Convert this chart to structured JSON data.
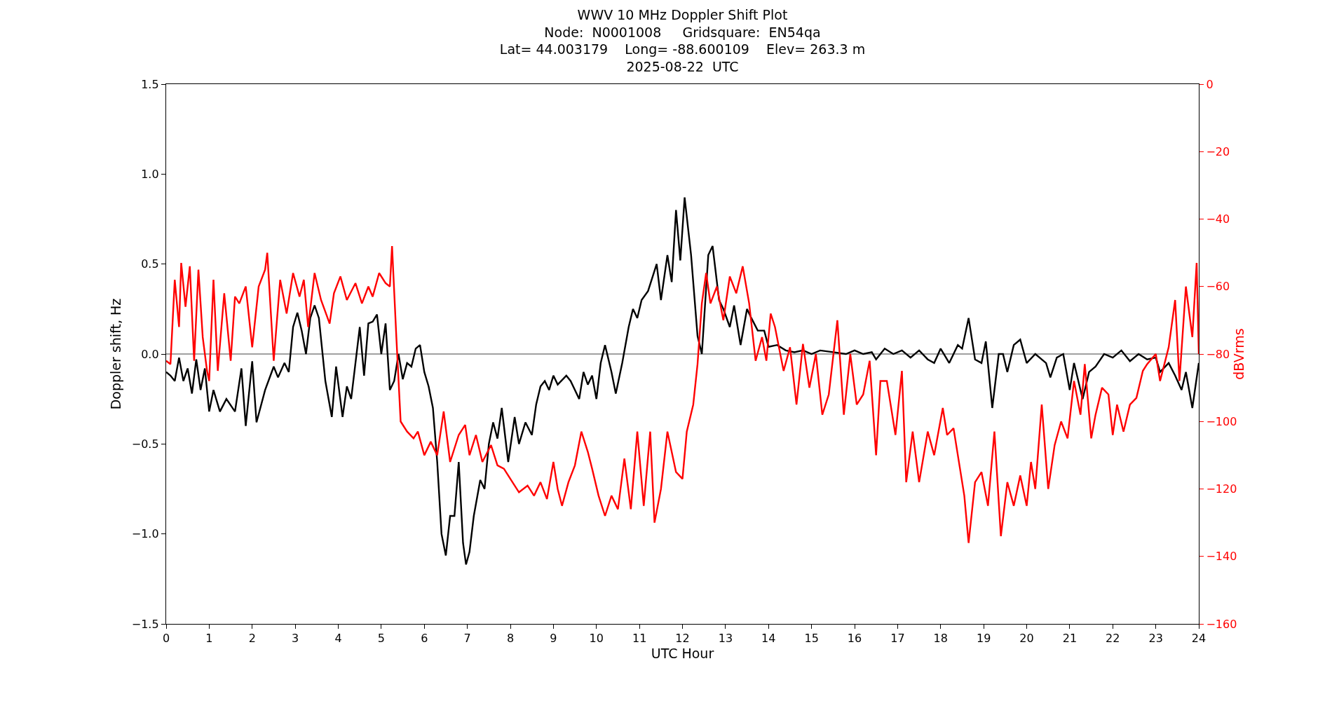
{
  "chart_data": {
    "type": "line",
    "title": "WWV 10 MHz Doppler Shift Plot\nNode:  N0001008     Gridsquare:  EN54qa\nLat= 44.003179    Long= -88.600109    Elev= 263.3 m\n2025-08-22  UTC",
    "xlabel": "UTC Hour",
    "ylabel": "Doppler shift, Hz",
    "y2label": "dBVrms",
    "xlim": [
      0,
      24
    ],
    "xticks": [
      0,
      1,
      2,
      3,
      4,
      5,
      6,
      7,
      8,
      9,
      10,
      11,
      12,
      13,
      14,
      15,
      16,
      17,
      18,
      19,
      20,
      21,
      22,
      23,
      24
    ],
    "ylim": [
      -1.5,
      1.5
    ],
    "yticks": [
      {
        "value": -1.5,
        "label": "−1.5"
      },
      {
        "value": -1.0,
        "label": "−1.0"
      },
      {
        "value": -0.5,
        "label": "−0.5"
      },
      {
        "value": 0,
        "label": "0.0"
      },
      {
        "value": 0.5,
        "label": "0.5"
      },
      {
        "value": 1.0,
        "label": "1.0"
      },
      {
        "value": 1.5,
        "label": "1.5"
      }
    ],
    "y2lim": [
      -160,
      0
    ],
    "y2ticks": [
      {
        "value": -160,
        "label": "−160"
      },
      {
        "value": -140,
        "label": "−140"
      },
      {
        "value": -120,
        "label": "−120"
      },
      {
        "value": -100,
        "label": "−100"
      },
      {
        "value": -80,
        "label": "−80"
      },
      {
        "value": -60,
        "label": "−60"
      },
      {
        "value": -40,
        "label": "−40"
      },
      {
        "value": -20,
        "label": "−20"
      },
      0
    ],
    "grid": false,
    "marker": "none",
    "line_style": "solid",
    "ref_lines": [
      {
        "axis": "y",
        "value": 0,
        "color": "#808080"
      }
    ],
    "series": [
      {
        "color": "#000000",
        "x": [
          0,
          0.1,
          0.2,
          0.3,
          0.4,
          0.5,
          0.6,
          0.7,
          0.8,
          0.9,
          1.0,
          1.1,
          1.25,
          1.4,
          1.6,
          1.75,
          1.85,
          2.0,
          2.1,
          2.3,
          2.5,
          2.6,
          2.75,
          2.85,
          2.95,
          3.05,
          3.15,
          3.25,
          3.35,
          3.45,
          3.55,
          3.7,
          3.85,
          3.95,
          4.1,
          4.2,
          4.3,
          4.5,
          4.6,
          4.7,
          4.8,
          4.9,
          5.0,
          5.1,
          5.2,
          5.3,
          5.4,
          5.5,
          5.6,
          5.7,
          5.8,
          5.9,
          6.0,
          6.1,
          6.2,
          6.3,
          6.4,
          6.5,
          6.6,
          6.7,
          6.8,
          6.9,
          6.97,
          7.05,
          7.15,
          7.3,
          7.4,
          7.5,
          7.6,
          7.7,
          7.8,
          7.95,
          8.1,
          8.2,
          8.35,
          8.5,
          8.6,
          8.7,
          8.8,
          8.9,
          9.0,
          9.1,
          9.3,
          9.4,
          9.6,
          9.7,
          9.8,
          9.9,
          10.0,
          10.1,
          10.2,
          10.35,
          10.45,
          10.6,
          10.75,
          10.85,
          10.95,
          11.05,
          11.2,
          11.4,
          11.5,
          11.65,
          11.75,
          11.85,
          11.95,
          12.05,
          12.2,
          12.35,
          12.45,
          12.6,
          12.7,
          12.85,
          12.95,
          13.1,
          13.2,
          13.35,
          13.5,
          13.6,
          13.75,
          13.9,
          14.0,
          14.2,
          14.4,
          14.6,
          14.8,
          15.0,
          15.2,
          15.5,
          15.8,
          16.0,
          16.2,
          16.4,
          16.5,
          16.7,
          16.9,
          17.1,
          17.3,
          17.5,
          17.7,
          17.85,
          18.0,
          18.2,
          18.4,
          18.5,
          18.65,
          18.8,
          18.95,
          19.05,
          19.2,
          19.35,
          19.45,
          19.55,
          19.7,
          19.85,
          20.0,
          20.2,
          20.45,
          20.55,
          20.7,
          20.85,
          21.0,
          21.1,
          21.2,
          21.3,
          21.45,
          21.6,
          21.8,
          22.0,
          22.2,
          22.4,
          22.6,
          22.8,
          23.0,
          23.1,
          23.3,
          23.45,
          23.6,
          23.7,
          23.85,
          24.0
        ],
        "values": [
          -0.1,
          -0.12,
          -0.15,
          -0.02,
          -0.15,
          -0.08,
          -0.22,
          -0.03,
          -0.2,
          -0.08,
          -0.32,
          -0.2,
          -0.32,
          -0.25,
          -0.32,
          -0.08,
          -0.4,
          -0.04,
          -0.38,
          -0.2,
          -0.07,
          -0.13,
          -0.05,
          -0.1,
          0.15,
          0.23,
          0.13,
          0.0,
          0.2,
          0.27,
          0.2,
          -0.15,
          -0.35,
          -0.07,
          -0.35,
          -0.18,
          -0.25,
          0.15,
          -0.12,
          0.17,
          0.18,
          0.22,
          0.0,
          0.17,
          -0.2,
          -0.15,
          0.0,
          -0.14,
          -0.05,
          -0.07,
          0.03,
          0.05,
          -0.1,
          -0.18,
          -0.3,
          -0.6,
          -1.0,
          -1.12,
          -0.9,
          -0.9,
          -0.6,
          -1.05,
          -1.17,
          -1.1,
          -0.9,
          -0.7,
          -0.75,
          -0.5,
          -0.38,
          -0.47,
          -0.3,
          -0.6,
          -0.35,
          -0.5,
          -0.38,
          -0.45,
          -0.28,
          -0.18,
          -0.15,
          -0.2,
          -0.12,
          -0.17,
          -0.12,
          -0.15,
          -0.25,
          -0.1,
          -0.17,
          -0.12,
          -0.25,
          -0.05,
          0.05,
          -0.1,
          -0.22,
          -0.05,
          0.15,
          0.25,
          0.2,
          0.3,
          0.35,
          0.5,
          0.3,
          0.55,
          0.4,
          0.8,
          0.52,
          0.87,
          0.55,
          0.1,
          0.0,
          0.55,
          0.6,
          0.3,
          0.25,
          0.15,
          0.27,
          0.05,
          0.25,
          0.2,
          0.13,
          0.13,
          0.04,
          0.05,
          0.02,
          0.01,
          0.02,
          0.0,
          0.02,
          0.01,
          0.0,
          0.02,
          0.0,
          0.01,
          -0.03,
          0.03,
          0.0,
          0.02,
          -0.02,
          0.02,
          -0.03,
          -0.05,
          0.03,
          -0.05,
          0.05,
          0.03,
          0.2,
          -0.03,
          -0.05,
          0.07,
          -0.3,
          0.0,
          0.0,
          -0.1,
          0.05,
          0.08,
          -0.05,
          0.0,
          -0.05,
          -0.13,
          -0.02,
          0.0,
          -0.2,
          -0.05,
          -0.15,
          -0.25,
          -0.1,
          -0.07,
          0.0,
          -0.02,
          0.02,
          -0.04,
          0.0,
          -0.03,
          -0.02,
          -0.1,
          -0.05,
          -0.12,
          -0.2,
          -0.1,
          -0.3,
          -0.05
        ]
      },
      {
        "color": "#ff0000",
        "axis": "y2",
        "x": [
          0,
          0.1,
          0.2,
          0.3,
          0.35,
          0.45,
          0.55,
          0.65,
          0.75,
          0.85,
          0.95,
          1.0,
          1.1,
          1.2,
          1.35,
          1.5,
          1.6,
          1.7,
          1.85,
          2.0,
          2.15,
          2.3,
          2.35,
          2.5,
          2.65,
          2.8,
          2.95,
          3.1,
          3.2,
          3.3,
          3.45,
          3.6,
          3.8,
          3.9,
          4.05,
          4.2,
          4.4,
          4.55,
          4.7,
          4.8,
          4.95,
          5.1,
          5.2,
          5.25,
          5.35,
          5.45,
          5.6,
          5.75,
          5.85,
          6.0,
          6.15,
          6.3,
          6.45,
          6.6,
          6.8,
          6.95,
          7.05,
          7.2,
          7.35,
          7.55,
          7.7,
          7.85,
          8.0,
          8.2,
          8.4,
          8.55,
          8.7,
          8.85,
          9.0,
          9.1,
          9.2,
          9.35,
          9.5,
          9.65,
          9.8,
          9.9,
          10.05,
          10.2,
          10.35,
          10.5,
          10.65,
          10.8,
          10.95,
          11.1,
          11.25,
          11.35,
          11.5,
          11.65,
          11.85,
          12.0,
          12.1,
          12.25,
          12.35,
          12.45,
          12.55,
          12.65,
          12.8,
          12.95,
          13.1,
          13.25,
          13.4,
          13.55,
          13.7,
          13.85,
          13.95,
          14.05,
          14.15,
          14.35,
          14.5,
          14.65,
          14.8,
          14.95,
          15.1,
          15.25,
          15.4,
          15.6,
          15.75,
          15.9,
          16.05,
          16.2,
          16.35,
          16.5,
          16.6,
          16.75,
          16.95,
          17.1,
          17.2,
          17.35,
          17.5,
          17.7,
          17.85,
          18.05,
          18.15,
          18.3,
          18.45,
          18.55,
          18.65,
          18.8,
          18.95,
          19.1,
          19.25,
          19.4,
          19.55,
          19.7,
          19.85,
          20.0,
          20.1,
          20.2,
          20.35,
          20.5,
          20.65,
          20.8,
          20.95,
          21.1,
          21.25,
          21.35,
          21.5,
          21.6,
          21.75,
          21.9,
          22.0,
          22.1,
          22.25,
          22.4,
          22.55,
          22.7,
          22.8,
          23.0,
          23.1,
          23.3,
          23.45,
          23.55,
          23.7,
          23.85,
          23.95,
          24.0
        ],
        "values": [
          -82,
          -83,
          -58,
          -72,
          -53,
          -66,
          -54,
          -82,
          -55,
          -75,
          -85,
          -88,
          -58,
          -85,
          -62,
          -82,
          -63,
          -65,
          -60,
          -78,
          -60,
          -55,
          -50,
          -82,
          -58,
          -68,
          -56,
          -63,
          -58,
          -72,
          -56,
          -64,
          -71,
          -62,
          -57,
          -64,
          -59,
          -65,
          -60,
          -63,
          -56,
          -59,
          -60,
          -48,
          -75,
          -100,
          -103,
          -105,
          -103,
          -110,
          -106,
          -110,
          -97,
          -112,
          -104,
          -101,
          -110,
          -104,
          -112,
          -107,
          -113,
          -114,
          -117,
          -121,
          -119,
          -122,
          -118,
          -123,
          -112,
          -120,
          -125,
          -118,
          -113,
          -103,
          -109,
          -114,
          -122,
          -128,
          -122,
          -126,
          -111,
          -126,
          -103,
          -125,
          -103,
          -130,
          -120,
          -103,
          -115,
          -117,
          -103,
          -95,
          -83,
          -65,
          -56,
          -65,
          -60,
          -70,
          -57,
          -62,
          -54,
          -65,
          -82,
          -75,
          -82,
          -68,
          -72,
          -85,
          -78,
          -95,
          -77,
          -90,
          -80,
          -98,
          -92,
          -70,
          -98,
          -80,
          -95,
          -92,
          -82,
          -110,
          -88,
          -88,
          -104,
          -85,
          -118,
          -103,
          -118,
          -103,
          -110,
          -96,
          -104,
          -102,
          -114,
          -122,
          -136,
          -118,
          -115,
          -125,
          -103,
          -134,
          -118,
          -125,
          -116,
          -125,
          -112,
          -120,
          -95,
          -120,
          -107,
          -100,
          -105,
          -88,
          -98,
          -83,
          -105,
          -98,
          -90,
          -92,
          -104,
          -95,
          -103,
          -95,
          -93,
          -85,
          -83,
          -80,
          -88,
          -78,
          -64,
          -88,
          -60,
          -75,
          -53,
          -80
        ]
      }
    ]
  }
}
